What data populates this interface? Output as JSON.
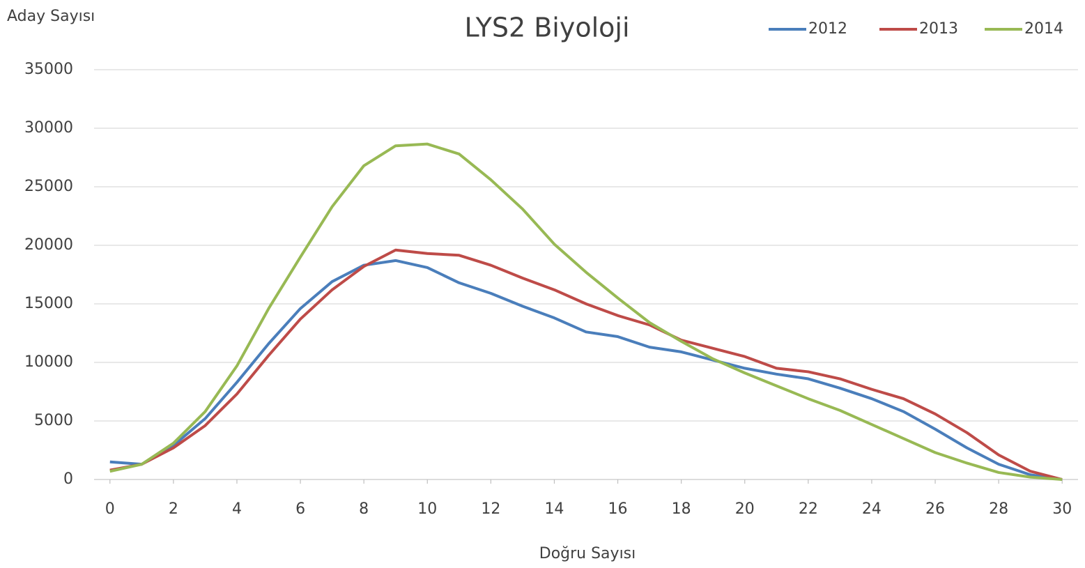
{
  "chart_data": {
    "type": "line",
    "title": "LYS2 Biyoloji",
    "y_label": "Aday Sayısı",
    "x_label": "Doğru Sayısı",
    "x": [
      0,
      1,
      2,
      3,
      4,
      5,
      6,
      7,
      8,
      9,
      10,
      11,
      12,
      13,
      14,
      15,
      16,
      17,
      18,
      19,
      20,
      21,
      22,
      23,
      24,
      25,
      26,
      27,
      28,
      29,
      30
    ],
    "xlim": [
      -0.5,
      30.5
    ],
    "xticks": [
      0,
      2,
      4,
      6,
      8,
      10,
      12,
      14,
      16,
      18,
      20,
      22,
      24,
      26,
      28,
      30
    ],
    "ylim": [
      0,
      35000
    ],
    "yticks": [
      0,
      5000,
      10000,
      15000,
      20000,
      25000,
      30000,
      35000
    ],
    "grid": true,
    "legend": "top-right",
    "series": [
      {
        "name": "2012",
        "color": "#4a7ebb",
        "values": [
          1500,
          1300,
          2900,
          5200,
          8300,
          11600,
          14600,
          16900,
          18300,
          18700,
          18100,
          16800,
          15900,
          14800,
          13800,
          12600,
          12200,
          11300,
          10900,
          10200,
          9500,
          9000,
          8600,
          7800,
          6900,
          5800,
          4300,
          2700,
          1300,
          400,
          0
        ]
      },
      {
        "name": "2013",
        "color": "#be4b48",
        "values": [
          800,
          1300,
          2700,
          4600,
          7300,
          10600,
          13700,
          16200,
          18200,
          19600,
          19300,
          19150,
          18300,
          17200,
          16200,
          15000,
          14000,
          13200,
          11900,
          11200,
          10500,
          9500,
          9200,
          8600,
          7700,
          6900,
          5600,
          4000,
          2100,
          700,
          0
        ]
      },
      {
        "name": "2014",
        "color": "#98b954",
        "values": [
          700,
          1300,
          3100,
          5800,
          9700,
          14600,
          19000,
          23300,
          26800,
          28500,
          28650,
          27800,
          25600,
          23100,
          20100,
          17700,
          15500,
          13400,
          11800,
          10300,
          9100,
          8000,
          6900,
          5900,
          4700,
          3500,
          2300,
          1400,
          600,
          200,
          0
        ]
      }
    ]
  }
}
